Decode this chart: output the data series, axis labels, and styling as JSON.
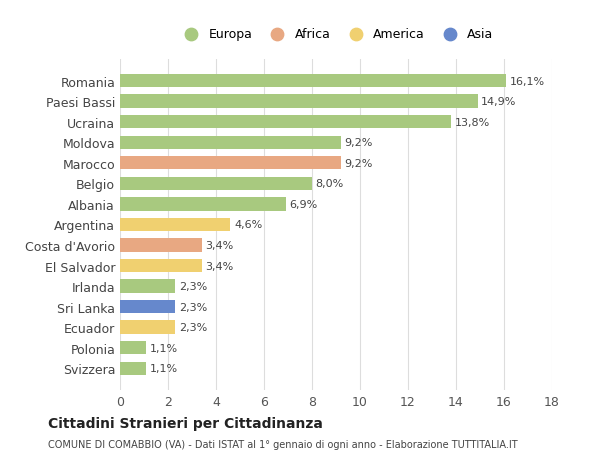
{
  "countries": [
    "Romania",
    "Paesi Bassi",
    "Ucraina",
    "Moldova",
    "Marocco",
    "Belgio",
    "Albania",
    "Argentina",
    "Costa d'Avorio",
    "El Salvador",
    "Irlanda",
    "Sri Lanka",
    "Ecuador",
    "Polonia",
    "Svizzera"
  ],
  "values": [
    16.1,
    14.9,
    13.8,
    9.2,
    9.2,
    8.0,
    6.9,
    4.6,
    3.4,
    3.4,
    2.3,
    2.3,
    2.3,
    1.1,
    1.1
  ],
  "labels": [
    "16,1%",
    "14,9%",
    "13,8%",
    "9,2%",
    "9,2%",
    "8,0%",
    "6,9%",
    "4,6%",
    "3,4%",
    "3,4%",
    "2,3%",
    "2,3%",
    "2,3%",
    "1,1%",
    "1,1%"
  ],
  "continents": [
    "Europa",
    "Europa",
    "Europa",
    "Europa",
    "Africa",
    "Europa",
    "Europa",
    "America",
    "Africa",
    "America",
    "Europa",
    "Asia",
    "America",
    "Europa",
    "Europa"
  ],
  "colors": {
    "Europa": "#a8c97f",
    "Africa": "#e8a882",
    "America": "#f0d070",
    "Asia": "#6688cc"
  },
  "legend_order": [
    "Europa",
    "Africa",
    "America",
    "Asia"
  ],
  "title": "Cittadini Stranieri per Cittadinanza",
  "subtitle": "COMUNE DI COMABBIO (VA) - Dati ISTAT al 1° gennaio di ogni anno - Elaborazione TUTTITALIA.IT",
  "xlim": [
    0,
    18
  ],
  "xticks": [
    0,
    2,
    4,
    6,
    8,
    10,
    12,
    14,
    16,
    18
  ],
  "background_color": "#ffffff",
  "grid_color": "#dddddd"
}
